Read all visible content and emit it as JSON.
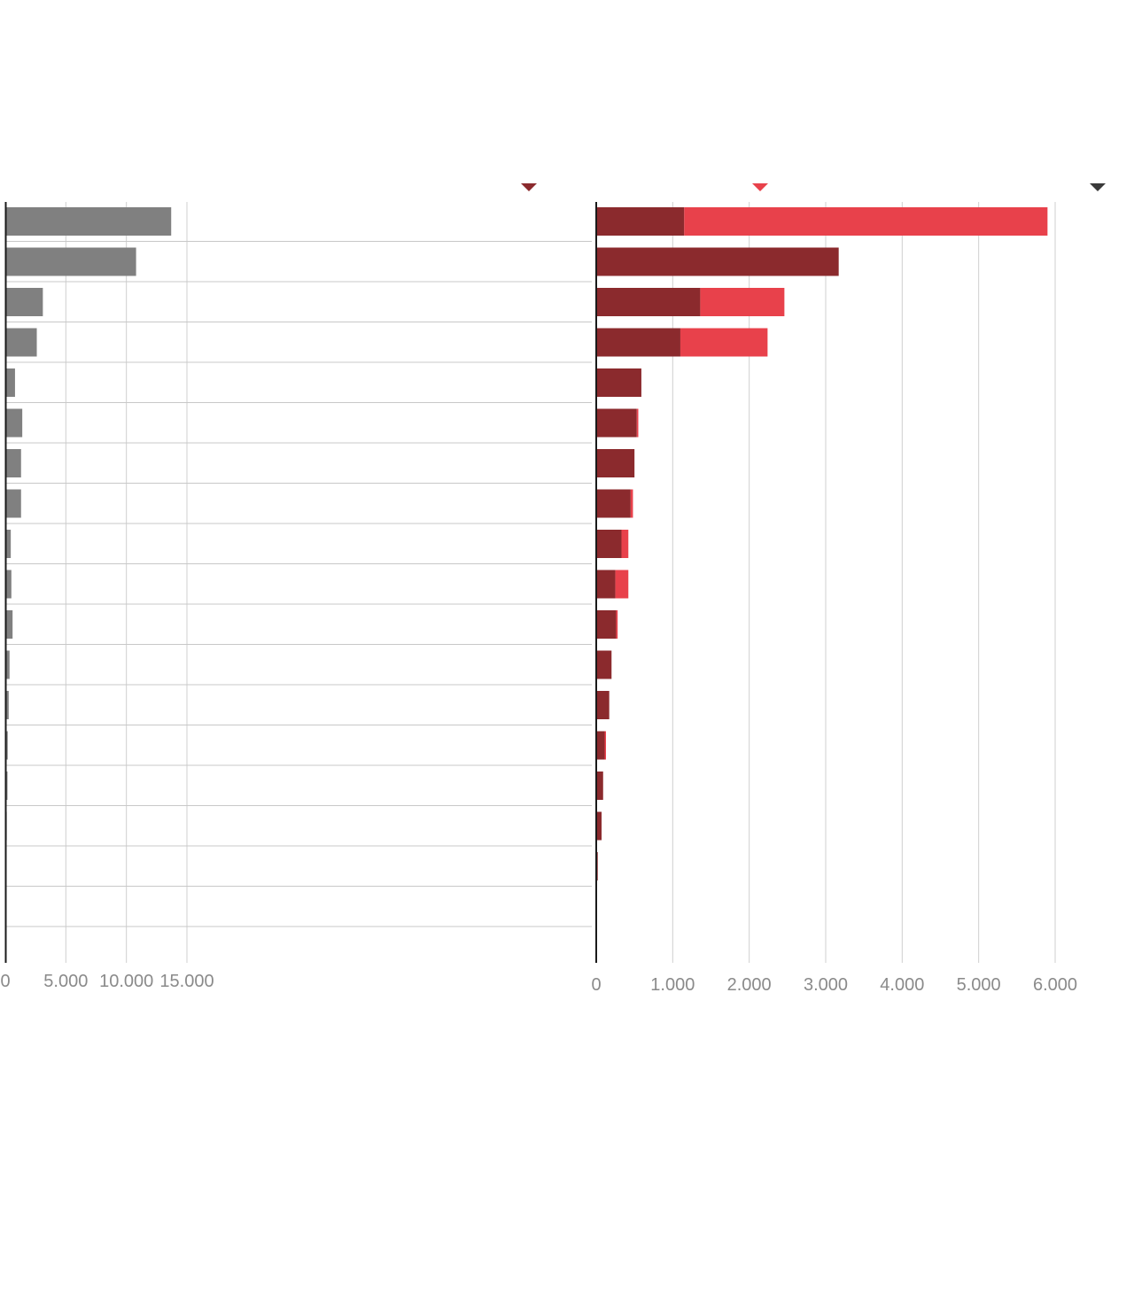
{
  "chart_data": [
    {
      "type": "bar",
      "orientation": "horizontal",
      "xlim": [
        0,
        15000
      ],
      "x_ticks": [
        0,
        5000,
        10000,
        15000
      ],
      "x_tick_labels": [
        "0",
        "5.000",
        "10.000",
        "15.000"
      ],
      "grid": true,
      "bar_color": "#808080",
      "values": [
        13700,
        10800,
        3100,
        2600,
        800,
        1400,
        1300,
        1300,
        450,
        500,
        600,
        350,
        280,
        200,
        180,
        120,
        90,
        40,
        20
      ]
    },
    {
      "type": "bar",
      "orientation": "horizontal",
      "stacked": true,
      "xlim": [
        0,
        6000
      ],
      "x_ticks": [
        0,
        1000,
        2000,
        3000,
        4000,
        5000,
        6000
      ],
      "x_tick_labels": [
        "0",
        "1.000",
        "2.000",
        "3.000",
        "4.000",
        "5.000",
        "6.000"
      ],
      "grid": true,
      "legend_markers": [
        {
          "color": "#8b2a2d",
          "marker": "triangle-down-icon"
        },
        {
          "color": "#e8414b",
          "marker": "triangle-down-icon"
        },
        {
          "color": "#3a3a3a",
          "marker": "triangle-down-icon"
        }
      ],
      "series": [
        {
          "color": "#8b2a2d",
          "values": [
            1150,
            3170,
            1360,
            1100,
            590,
            530,
            500,
            450,
            330,
            250,
            260,
            200,
            170,
            110,
            90,
            70,
            20,
            0,
            0
          ]
        },
        {
          "color": "#e8414b",
          "values": [
            4750,
            0,
            1100,
            1140,
            0,
            20,
            0,
            30,
            90,
            170,
            20,
            0,
            0,
            10,
            0,
            0,
            0,
            0,
            0
          ]
        }
      ]
    }
  ]
}
